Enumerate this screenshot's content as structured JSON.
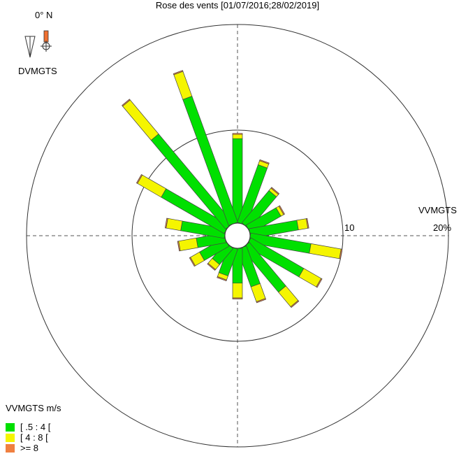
{
  "chart_data": {
    "type": "wind-rose",
    "title": "Rose des vents [01/07/2016;28/02/2019]",
    "direction_variable": "DVMGTS",
    "speed_variable": "VVMGTS",
    "north_label": "0° N",
    "radial_labels": {
      "ring": "10",
      "outer": "20%"
    },
    "legend": {
      "title": "VVMGTS m/s",
      "classes": [
        {
          "label": "[ .5 : 4 [",
          "color": "#00e000"
        },
        {
          "label": "[ 4 : 8 [",
          "color": "#f5f500"
        },
        {
          "label": ">= 8",
          "color": "#f08040"
        }
      ]
    },
    "sectors_deg": [
      0,
      20,
      40,
      60,
      80,
      100,
      120,
      140,
      160,
      180,
      200,
      220,
      240,
      260,
      280,
      300,
      320,
      340
    ],
    "calm_frequency_pct": 2.0,
    "series": [
      {
        "name": "[ .5 : 4 [",
        "values": [
          8.0,
          5.8,
          4.0,
          3.3,
          4.6,
          5.8,
          5.8,
          5.4,
          3.8,
          3.3,
          2.7,
          2.0,
          2.7,
          2.7,
          4.2,
          6.9,
          11.0,
          12.7
        ]
      },
      {
        "name": "[ 4 : 8 [",
        "values": [
          0.4,
          0.4,
          0.3,
          0.3,
          0.9,
          2.9,
          1.9,
          1.8,
          1.5,
          1.4,
          0.4,
          0.6,
          1.0,
          1.7,
          1.4,
          2.6,
          4.2,
          2.5
        ]
      },
      {
        "name": ">= 8",
        "values": [
          0.1,
          0.1,
          0.1,
          0.1,
          0.1,
          0.1,
          0.1,
          0.1,
          0.1,
          0.1,
          0.1,
          0.1,
          0.1,
          0.1,
          0.1,
          0.1,
          0.1,
          0.1
        ]
      }
    ],
    "rlim": [
      0,
      20
    ],
    "rings": [
      10,
      20
    ],
    "grid": true
  }
}
